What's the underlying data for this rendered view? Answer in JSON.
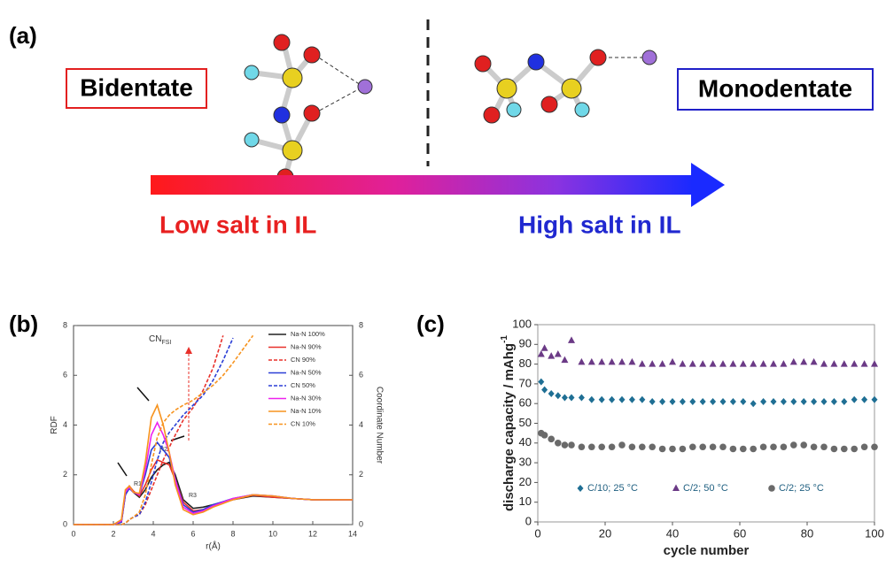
{
  "panel_a": {
    "label": "(a)",
    "left_box": "Bidentate",
    "right_box": "Monodentate",
    "left_caption": "Low salt in IL",
    "right_caption": "High salt in IL"
  },
  "chart_data": [
    {
      "type": "line",
      "panel_label": "(b)",
      "xlabel": "r(Å)",
      "ylabel": "RDF",
      "y2label": "Coordinate Number",
      "annotation_main": "CN",
      "annotation_sub": "FSI",
      "annotations": [
        "R1",
        "R2",
        "R3"
      ],
      "xlim": [
        0,
        14
      ],
      "xticks": [
        0,
        2,
        4,
        6,
        8,
        10,
        12,
        14
      ],
      "ylim": [
        0,
        8
      ],
      "yticks": [
        0,
        2,
        4,
        6,
        8
      ],
      "y2lim": [
        0,
        8
      ],
      "y2ticks": [
        0,
        2,
        4,
        6,
        8
      ],
      "legend": "upper right",
      "x": [
        0,
        2,
        2.4,
        2.6,
        2.8,
        3,
        3.3,
        3.6,
        3.9,
        4.2,
        4.5,
        4.8,
        5.1,
        5.5,
        6,
        6.5,
        7,
        7.5,
        8,
        9,
        10,
        11,
        12,
        13,
        14
      ],
      "series": [
        {
          "name": "Na-N 100%",
          "color": "#222222",
          "dash": false,
          "values": [
            0,
            0,
            0.1,
            1.2,
            1.5,
            1.3,
            1.1,
            1.4,
            1.9,
            2.2,
            2.4,
            2.5,
            2.0,
            1.0,
            0.65,
            0.7,
            0.8,
            0.9,
            1.0,
            1.15,
            1.1,
            1.05,
            1.0,
            1.0,
            1.0
          ]
        },
        {
          "name": "Na-N 90%",
          "color": "#e8302a",
          "dash": false,
          "values": [
            0,
            0,
            0.1,
            1.3,
            1.55,
            1.35,
            1.15,
            1.6,
            2.2,
            2.6,
            2.5,
            2.4,
            1.8,
            0.9,
            0.55,
            0.6,
            0.75,
            0.88,
            1.0,
            1.18,
            1.1,
            1.05,
            1.0,
            1.0,
            1.0
          ]
        },
        {
          "name": "CN 90%",
          "color": "#e8302a",
          "dash": true,
          "axis": "y2",
          "values": [
            0,
            0,
            0,
            0.05,
            0.2,
            0.3,
            0.4,
            0.8,
            1.4,
            2.0,
            2.6,
            3.1,
            3.6,
            4.2,
            4.7,
            5.4,
            6.3,
            7.6,
            null,
            null,
            null,
            null,
            null,
            null,
            null
          ]
        },
        {
          "name": "Na-N 50%",
          "color": "#2b3fd6",
          "dash": false,
          "values": [
            0,
            0,
            0.1,
            1.2,
            1.45,
            1.3,
            1.2,
            2.0,
            3.0,
            3.3,
            3.0,
            2.7,
            1.8,
            0.8,
            0.5,
            0.6,
            0.8,
            0.92,
            1.05,
            1.2,
            1.15,
            1.05,
            1.0,
            1.0,
            1.0
          ]
        },
        {
          "name": "CN 50%",
          "color": "#2b3fd6",
          "dash": true,
          "axis": "y2",
          "values": [
            0,
            0,
            0,
            0.05,
            0.2,
            0.3,
            0.4,
            0.9,
            1.7,
            2.6,
            3.3,
            3.7,
            4.0,
            4.4,
            4.8,
            5.2,
            5.8,
            6.6,
            7.5,
            null,
            null,
            null,
            null,
            null,
            null
          ]
        },
        {
          "name": "Na-N 30%",
          "color": "#ee22ee",
          "dash": false,
          "values": [
            0,
            0,
            0.15,
            1.3,
            1.5,
            1.3,
            1.2,
            2.2,
            3.6,
            4.1,
            3.6,
            2.9,
            1.8,
            0.7,
            0.45,
            0.55,
            0.75,
            0.9,
            1.05,
            1.2,
            1.15,
            1.05,
            1.0,
            1.0,
            1.0
          ]
        },
        {
          "name": "Na-N 10%",
          "color": "#f7931e",
          "dash": false,
          "values": [
            0,
            0,
            0.2,
            1.4,
            1.55,
            1.3,
            1.25,
            2.5,
            4.3,
            4.8,
            4.0,
            2.9,
            1.6,
            0.6,
            0.4,
            0.5,
            0.7,
            0.85,
            1.0,
            1.2,
            1.15,
            1.05,
            1.0,
            1.0,
            1.0
          ]
        },
        {
          "name": "CN 10%",
          "color": "#f7931e",
          "dash": true,
          "axis": "y2",
          "values": [
            0,
            0,
            0,
            0.05,
            0.2,
            0.3,
            0.5,
            1.2,
            2.4,
            3.5,
            4.1,
            4.4,
            4.6,
            4.8,
            5.0,
            5.3,
            5.6,
            6.0,
            6.5,
            7.6,
            null,
            null,
            null,
            null,
            null
          ]
        }
      ]
    },
    {
      "type": "scatter",
      "panel_label": "(c)",
      "xlabel": "cycle number",
      "ylabel": "discharge capacity / mAhg",
      "ylabel_sup": "-1",
      "xlim": [
        0,
        100
      ],
      "xticks": [
        0,
        20,
        40,
        60,
        80,
        100
      ],
      "ylim": [
        0,
        100
      ],
      "yticks": [
        0,
        10,
        20,
        30,
        40,
        50,
        60,
        70,
        80,
        90,
        100
      ],
      "legend": "lower center",
      "x": [
        1,
        2,
        4,
        6,
        8,
        10,
        13,
        16,
        19,
        22,
        25,
        28,
        31,
        34,
        37,
        40,
        43,
        46,
        49,
        52,
        55,
        58,
        61,
        64,
        67,
        70,
        73,
        76,
        79,
        82,
        85,
        88,
        91,
        94,
        97,
        100
      ],
      "series": [
        {
          "name": "C/10; 25 °C",
          "color": "#1f6f94",
          "marker": "diamond",
          "values": [
            71,
            67,
            65,
            64,
            63,
            63,
            63,
            62,
            62,
            62,
            62,
            62,
            62,
            61,
            61,
            61,
            61,
            61,
            61,
            61,
            61,
            61,
            61,
            60,
            61,
            61,
            61,
            61,
            61,
            61,
            61,
            61,
            61,
            62,
            62,
            62
          ]
        },
        {
          "name": "C/2; 50 °C",
          "color": "#6b3a86",
          "marker": "triangle",
          "values": [
            85,
            88,
            84,
            85,
            82,
            92,
            81,
            81,
            81,
            81,
            81,
            81,
            80,
            80,
            80,
            81,
            80,
            80,
            80,
            80,
            80,
            80,
            80,
            80,
            80,
            80,
            80,
            81,
            81,
            81,
            80,
            80,
            80,
            80,
            80,
            80
          ]
        },
        {
          "name": "C/2; 25 °C",
          "color": "#6a6a6a",
          "marker": "circle",
          "values": [
            45,
            44,
            42,
            40,
            39,
            39,
            38,
            38,
            38,
            38,
            39,
            38,
            38,
            38,
            37,
            37,
            37,
            38,
            38,
            38,
            38,
            37,
            37,
            37,
            38,
            38,
            38,
            39,
            39,
            38,
            38,
            37,
            37,
            37,
            38,
            38
          ]
        }
      ]
    }
  ]
}
